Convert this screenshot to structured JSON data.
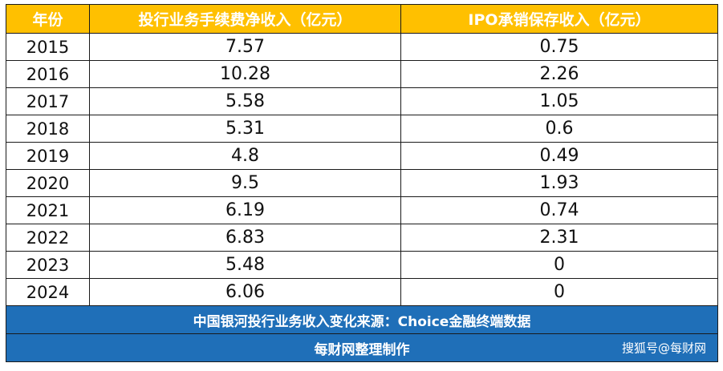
{
  "chart_data": {
    "type": "table",
    "headers": [
      "年份",
      "投行业务手续费净收入（亿元）",
      "IPO承销保存收入（亿元）"
    ],
    "rows": [
      [
        "2015",
        "7.57",
        "0.75"
      ],
      [
        "2016",
        "10.28",
        "2.26"
      ],
      [
        "2017",
        "5.58",
        "1.05"
      ],
      [
        "2018",
        "5.31",
        "0.6"
      ],
      [
        "2019",
        "4.8",
        "0.49"
      ],
      [
        "2020",
        "9.5",
        "1.93"
      ],
      [
        "2021",
        "6.19",
        "0.74"
      ],
      [
        "2022",
        "6.83",
        "2.31"
      ],
      [
        "2023",
        "5.48",
        "0"
      ],
      [
        "2024",
        "6.06",
        "0"
      ]
    ],
    "header_color": "#FFC000",
    "footer_color": "#1F6FB8"
  },
  "footer": {
    "source": "中国银河投行业务收入变化来源：Choice金融终端数据",
    "credit": "每财网整理制作",
    "watermark": "搜狐号@每财网"
  }
}
